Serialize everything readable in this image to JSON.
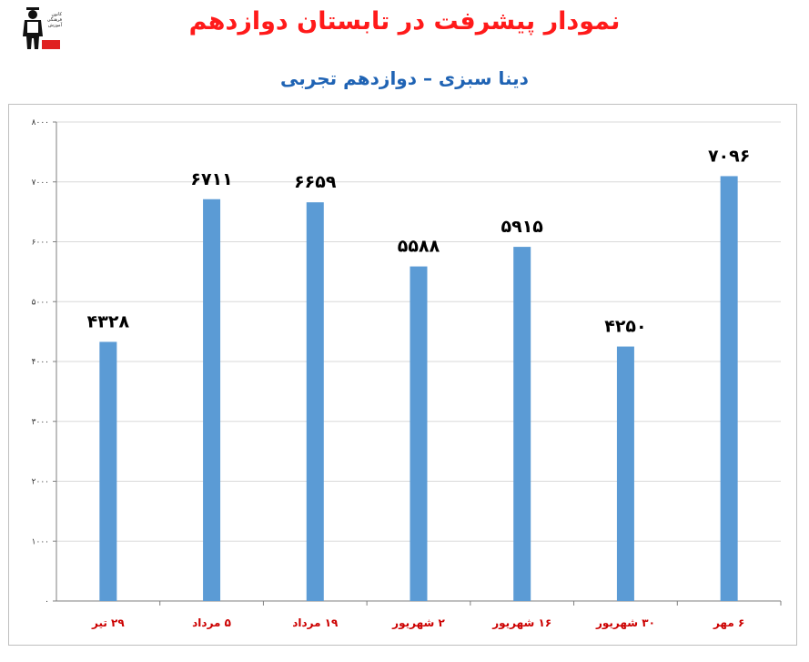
{
  "logo": {
    "icon": "graduate-figure-icon",
    "text_lines": [
      "کانون",
      "فرهنگی",
      "آموزش"
    ],
    "badge_color": "#e02020"
  },
  "header": {
    "title": "نمودار پیشرفت در تابستان دوازدهم",
    "subtitle": "دینا سبزی – دوازدهم تجربی"
  },
  "colors": {
    "title": "#ff1a1a",
    "subtitle": "#1f63b4",
    "bar": "#5b9bd5",
    "category_label": "#cc0000"
  },
  "chart_data": {
    "type": "bar",
    "title": "",
    "xlabel": "",
    "ylabel": "",
    "categories": [
      "۲۹ تیر",
      "۵ مرداد",
      "۱۹ مرداد",
      "۲ شهریور",
      "۱۶ شهریور",
      "۳۰ شهریور",
      "۶ مهر"
    ],
    "values": [
      4328,
      6711,
      6659,
      5588,
      5915,
      4250,
      7096
    ],
    "data_labels": [
      "۴۳۲۸",
      "۶۷۱۱",
      "۶۶۵۹",
      "۵۵۸۸",
      "۵۹۱۵",
      "۴۲۵۰",
      "۷۰۹۶"
    ],
    "ylim": [
      0,
      8000
    ],
    "yticks": [
      0,
      1000,
      2000,
      3000,
      4000,
      5000,
      6000,
      7000,
      8000
    ],
    "ytick_labels": [
      "۰",
      "۱۰۰۰",
      "۲۰۰۰",
      "۳۰۰۰",
      "۴۰۰۰",
      "۵۰۰۰",
      "۶۰۰۰",
      "۷۰۰۰",
      "۸۰۰۰"
    ],
    "grid": true,
    "legend": "none"
  }
}
